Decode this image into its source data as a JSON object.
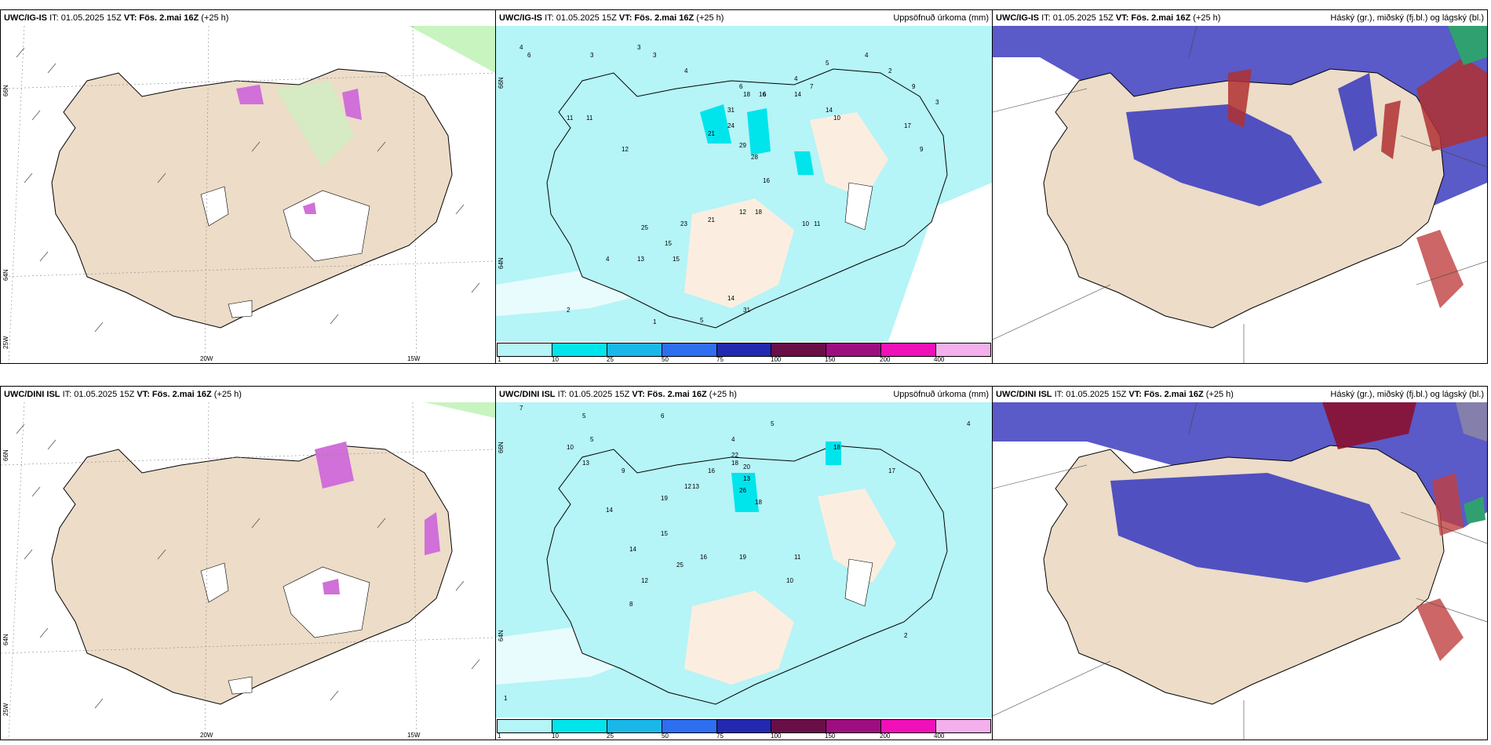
{
  "rows": [
    {
      "id": "ig",
      "panels": [
        {
          "model": "UWC/IG-IS",
          "issue": "IT: 01.05.2025 15Z",
          "valid": "VT: Fös. 2.mai 16Z",
          "lead": "(+25 h)",
          "right_title": ""
        },
        {
          "model": "UWC/IG-IS",
          "issue": "IT: 01.05.2025 15Z",
          "valid": "VT: Fös. 2.mai 16Z",
          "lead": "(+25 h)",
          "right_title": "Uppsöfnuð úrkoma (mm)"
        },
        {
          "model": "UWC/IG-IS",
          "issue": "IT: 01.05.2025 15Z",
          "valid": "VT: Fös. 2.mai 16Z",
          "lead": "(+25 h)",
          "right_title": "Háský (gr.), miðský (fj.bl.) og lágský (bl.)"
        }
      ]
    },
    {
      "id": "dini",
      "panels": [
        {
          "model": "UWC/DINI ISL",
          "issue": "IT: 01.05.2025 15Z",
          "valid": "VT: Fös. 2.mai 16Z",
          "lead": "(+25 h)",
          "right_title": ""
        },
        {
          "model": "UWC/DINI ISL",
          "issue": "IT: 01.05.2025 15Z",
          "valid": "VT: Fös. 2.mai 16Z",
          "lead": "(+25 h)",
          "right_title": "Uppsöfnuð úrkoma (mm)"
        },
        {
          "model": "UWC/DINI ISL",
          "issue": "IT: 01.05.2025 15Z",
          "valid": "VT: Fös. 2.mai 16Z",
          "lead": "(+25 h)",
          "right_title": "Háský (gr.), miðský (fj.bl.) og lágský (bl.)"
        }
      ]
    }
  ],
  "grid_labels": {
    "lat66": "66N",
    "lat64": "64N",
    "lon25": "25W",
    "lon20": "20W",
    "lon15": "15W"
  },
  "legend": {
    "ticks": [
      "1",
      "10",
      "25",
      "50",
      "75",
      "100",
      "150",
      "200",
      "400"
    ],
    "colors": [
      "#b5f4f7",
      "#00e4ec",
      "#1ab8e8",
      "#2e6ff0",
      "#2328b0",
      "#6a0e48",
      "#9e0e80",
      "#f010b8",
      "#f4b0ec"
    ]
  },
  "precip_labels_ig": [
    "4",
    "6",
    "3",
    "3",
    "3",
    "4",
    "6",
    "6",
    "4",
    "7",
    "5",
    "4",
    "2",
    "9",
    "3",
    "11",
    "11",
    "12",
    "21",
    "24",
    "31",
    "18",
    "16",
    "29",
    "28",
    "14",
    "14",
    "10",
    "17",
    "9",
    "12",
    "18",
    "16",
    "10",
    "11",
    "23",
    "25",
    "21",
    "15",
    "15",
    "13",
    "4",
    "14",
    "31",
    "2",
    "1",
    "5"
  ],
  "precip_labels_dini": [
    "7",
    "5",
    "6",
    "4",
    "5",
    "10",
    "13",
    "9",
    "22",
    "13",
    "18",
    "20",
    "26",
    "18",
    "16",
    "13",
    "19",
    "12",
    "19",
    "25",
    "16",
    "10",
    "15",
    "18",
    "17",
    "14",
    "12",
    "8",
    "11",
    "14",
    "5",
    "4",
    "2",
    "1"
  ],
  "colors": {
    "land": "#ecdcc8",
    "ocean_precip": "#b5f4f7",
    "coast": "#000000",
    "high_cloud": "#6060c8",
    "mid_cloud": "#b03030",
    "low_cloud": "#30b070",
    "purple": "#d070d8",
    "green_shade": "#c8f4c0"
  }
}
